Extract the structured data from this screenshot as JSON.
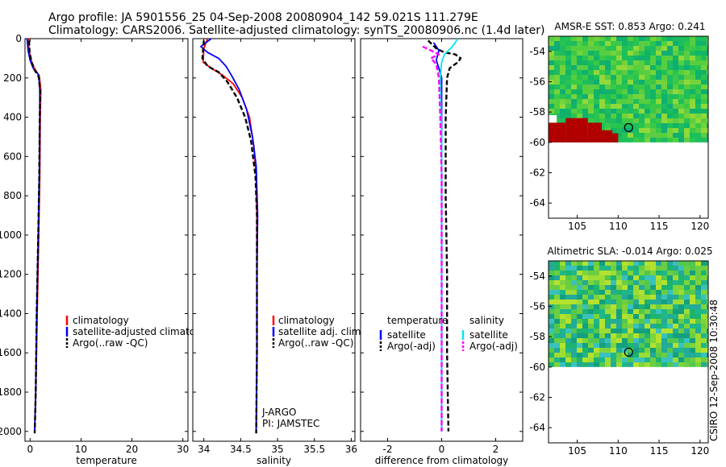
{
  "header": {
    "line1": "Argo profile: JA 5901556_25 04-Sep-2008 20080904_142 59.021S 111.279E",
    "line2": "Climatology: CARS2006. Satellite-adjusted climatology: synTS_20080906.nc (1.4d later)"
  },
  "side_stamp": "CSIRO 12-Sep-2008 10:30:48",
  "colors": {
    "climatology": "#ff0000",
    "satellite": "#0000ff",
    "argo": "#000000",
    "salinity_satellite": "#00e5ee",
    "salinity_argo": "#ff00ff",
    "land_flag": "#b00000"
  },
  "chart_data": [
    {
      "type": "line",
      "id": "temperature",
      "xlabel": "temperature",
      "xlim": [
        -1,
        31
      ],
      "xticks": [
        0,
        10,
        20,
        30
      ],
      "ylim": [
        2050,
        0
      ],
      "yticks": [
        0,
        200,
        400,
        600,
        800,
        1000,
        1200,
        1400,
        1600,
        1800,
        2000
      ],
      "legend": {
        "position": "lower-right",
        "entries": [
          "climatology",
          "satellite-adjusted climatology",
          "Argo(..raw -QC)"
        ]
      },
      "series": [
        {
          "name": "climatology",
          "color": "#ff0000",
          "dash": false,
          "points": [
            [
              -0.3,
              0
            ],
            [
              -0.2,
              60
            ],
            [
              0.2,
              110
            ],
            [
              0.8,
              150
            ],
            [
              1.8,
              190
            ],
            [
              2.1,
              260
            ],
            [
              2.0,
              400
            ],
            [
              1.9,
              700
            ],
            [
              1.7,
              1000
            ],
            [
              1.4,
              1400
            ],
            [
              1.1,
              1800
            ],
            [
              0.9,
              2000
            ]
          ]
        },
        {
          "name": "satellite-adjusted climatology",
          "color": "#0000ff",
          "dash": false,
          "points": [
            [
              -0.6,
              0
            ],
            [
              -0.4,
              60
            ],
            [
              0.0,
              110
            ],
            [
              0.6,
              150
            ],
            [
              1.7,
              185
            ],
            [
              1.9,
              260
            ],
            [
              1.9,
              400
            ],
            [
              1.8,
              700
            ],
            [
              1.6,
              1000
            ],
            [
              1.3,
              1400
            ],
            [
              1.1,
              1800
            ],
            [
              0.9,
              2000
            ]
          ]
        },
        {
          "name": "Argo(..raw -QC)",
          "color": "#000000",
          "dash": true,
          "points": [
            [
              -0.2,
              10
            ],
            [
              -0.1,
              70
            ],
            [
              0.3,
              120
            ],
            [
              0.9,
              160
            ],
            [
              1.7,
              195
            ],
            [
              2.0,
              270
            ],
            [
              1.9,
              400
            ],
            [
              1.8,
              700
            ],
            [
              1.6,
              1000
            ],
            [
              1.3,
              1400
            ],
            [
              1.1,
              1800
            ],
            [
              0.9,
              2010
            ]
          ]
        }
      ]
    },
    {
      "type": "line",
      "id": "salinity",
      "xlabel": "salinity",
      "xlim": [
        33.85,
        36.05
      ],
      "xticks": [
        34,
        34.5,
        35,
        35.5,
        36
      ],
      "ylim": [
        2050,
        0
      ],
      "legend": {
        "position": "lower-right",
        "entries": [
          "climatology",
          "satellite adj. clim.",
          "Argo(..raw -QC)"
        ]
      },
      "annotations": [
        "J-ARGO",
        "PI: JAMSTEC"
      ],
      "series": [
        {
          "name": "climatology",
          "color": "#ff0000",
          "dash": false,
          "points": [
            [
              34.05,
              0
            ],
            [
              34.0,
              50
            ],
            [
              33.99,
              120
            ],
            [
              34.1,
              150
            ],
            [
              34.25,
              185
            ],
            [
              34.4,
              230
            ],
            [
              34.52,
              300
            ],
            [
              34.62,
              400
            ],
            [
              34.68,
              550
            ],
            [
              34.71,
              700
            ],
            [
              34.72,
              900
            ],
            [
              34.72,
              1200
            ],
            [
              34.72,
              1600
            ],
            [
              34.71,
              2000
            ]
          ]
        },
        {
          "name": "satellite adj. clim.",
          "color": "#0000ff",
          "dash": false,
          "points": [
            [
              34.1,
              0
            ],
            [
              33.96,
              40
            ],
            [
              34.05,
              70
            ],
            [
              34.2,
              100
            ],
            [
              34.3,
              140
            ],
            [
              34.38,
              190
            ],
            [
              34.48,
              260
            ],
            [
              34.58,
              360
            ],
            [
              34.66,
              500
            ],
            [
              34.71,
              650
            ],
            [
              34.73,
              900
            ],
            [
              34.72,
              1200
            ],
            [
              34.72,
              1600
            ],
            [
              34.71,
              2000
            ]
          ]
        },
        {
          "name": "Argo(..raw -QC)",
          "color": "#000000",
          "dash": true,
          "points": [
            [
              34.0,
              10
            ],
            [
              33.98,
              100
            ],
            [
              34.05,
              140
            ],
            [
              34.2,
              170
            ],
            [
              34.32,
              220
            ],
            [
              34.45,
              300
            ],
            [
              34.56,
              400
            ],
            [
              34.64,
              520
            ],
            [
              34.7,
              700
            ],
            [
              34.72,
              900
            ],
            [
              34.72,
              1200
            ],
            [
              34.72,
              1600
            ],
            [
              34.71,
              2010
            ]
          ]
        }
      ]
    },
    {
      "type": "line",
      "id": "difference",
      "xlabel": "difference from climatology",
      "xlim": [
        -3,
        3
      ],
      "xticks": [
        -2,
        0,
        2
      ],
      "ylim": [
        2050,
        0
      ],
      "legend": {
        "position": "lower-right",
        "columns": [
          {
            "heading": "temperature",
            "entries": [
              "satellite",
              "Argo(-adj)"
            ]
          },
          {
            "heading": "salinity",
            "entries": [
              "satellite",
              "Argo(-adj)"
            ]
          }
        ]
      },
      "series": [
        {
          "name": "temperature satellite",
          "color": "#0000ff",
          "dash": false,
          "points": [
            [
              -0.3,
              20
            ],
            [
              -0.1,
              60
            ],
            [
              -0.2,
              110
            ],
            [
              -0.1,
              150
            ],
            [
              0.0,
              200
            ],
            [
              0.0,
              600
            ],
            [
              0.0,
              1000
            ],
            [
              0.0,
              1500
            ],
            [
              0.0,
              2000
            ]
          ]
        },
        {
          "name": "temperature Argo(-adj)",
          "color": "#000000",
          "dash": true,
          "points": [
            [
              -0.5,
              10
            ],
            [
              -0.2,
              50
            ],
            [
              0.1,
              70
            ],
            [
              0.5,
              80
            ],
            [
              0.7,
              100
            ],
            [
              0.6,
              120
            ],
            [
              0.3,
              150
            ],
            [
              0.2,
              200
            ],
            [
              0.15,
              400
            ],
            [
              0.15,
              800
            ],
            [
              0.2,
              1200
            ],
            [
              0.2,
              1600
            ],
            [
              0.25,
              2000
            ]
          ]
        },
        {
          "name": "salinity satellite",
          "color": "#00e5ee",
          "dash": false,
          "points": [
            [
              0.6,
              0
            ],
            [
              0.4,
              40
            ],
            [
              0.1,
              80
            ],
            [
              0.0,
              120
            ],
            [
              -0.05,
              200
            ],
            [
              0.0,
              500
            ],
            [
              0.0,
              1000
            ],
            [
              0.0,
              1500
            ],
            [
              0.0,
              2000
            ]
          ]
        },
        {
          "name": "salinity Argo(-adj)",
          "color": "#ff00ff",
          "dash": true,
          "points": [
            [
              -0.7,
              40
            ],
            [
              -0.1,
              80
            ],
            [
              -0.4,
              100
            ],
            [
              -0.2,
              130
            ],
            [
              -0.1,
              200
            ],
            [
              -0.05,
              400
            ],
            [
              0.0,
              700
            ],
            [
              0.0,
              1000
            ],
            [
              0.0,
              1500
            ],
            [
              0.0,
              2000
            ]
          ]
        }
      ]
    },
    {
      "type": "heatmap",
      "id": "sst",
      "title": "AMSR-E SST: 0.853  Argo: 0.241",
      "xlim": [
        101.5,
        121
      ],
      "xticks": [
        105,
        110,
        115,
        120
      ],
      "ylim": [
        -65,
        -53
      ],
      "yticks": [
        -54,
        -56,
        -58,
        -60,
        -62,
        -64
      ],
      "data_bottom_lat": -60,
      "argo_marker": [
        111.279,
        -59.021
      ],
      "land_mask": "dark red block along the lower-left of the data area"
    },
    {
      "type": "heatmap",
      "id": "sla",
      "title": "Altimetric SLA: -0.014  Argo: 0.025",
      "xlim": [
        101.5,
        121
      ],
      "xticks": [
        105,
        110,
        115,
        120
      ],
      "ylim": [
        -65,
        -53
      ],
      "yticks": [
        -54,
        -56,
        -58,
        -60,
        -62,
        -64
      ],
      "data_bottom_lat": -60,
      "argo_marker": [
        111.279,
        -59.021
      ]
    }
  ]
}
